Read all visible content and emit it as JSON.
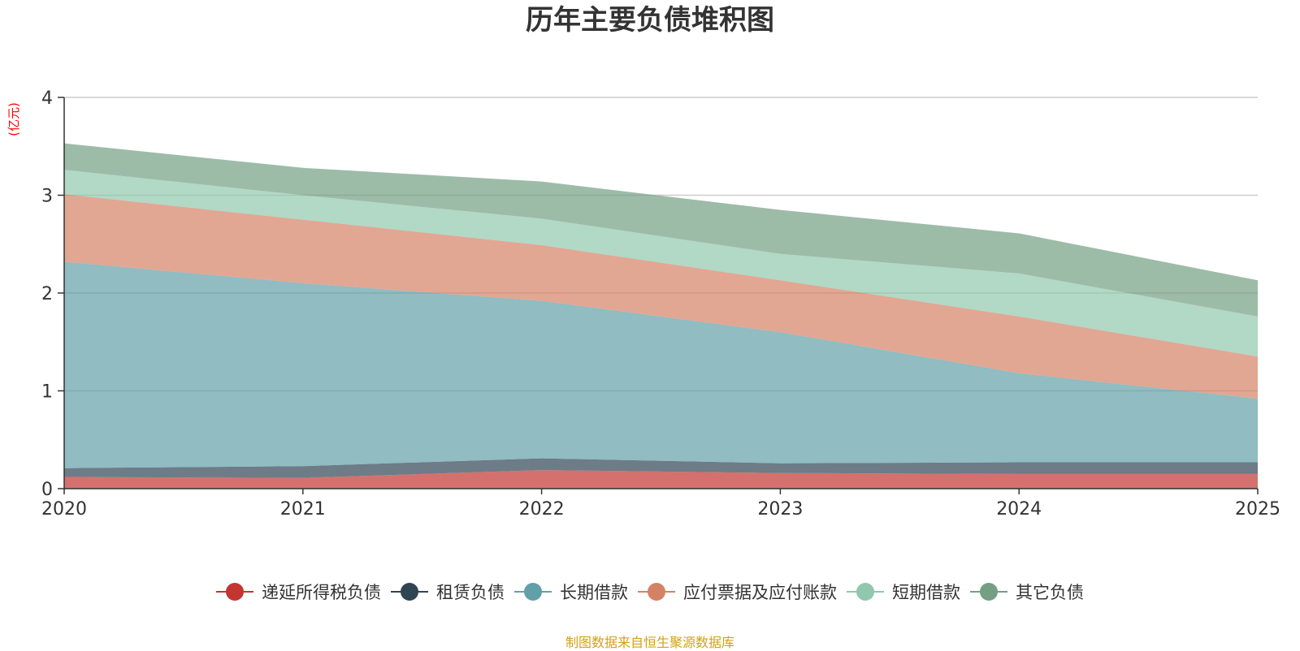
{
  "chart_data": {
    "type": "area",
    "stacked": true,
    "title": "历年主要负债堆积图",
    "ylabel": "(亿元)",
    "xlabel": "",
    "x": [
      "2020",
      "2021",
      "2022",
      "2023",
      "2024",
      "2025"
    ],
    "ylim": [
      0,
      4
    ],
    "yticks": [
      0,
      1,
      2,
      3,
      4
    ],
    "grid": true,
    "legend_position": "bottom",
    "series": [
      {
        "name": "递延所得税负债",
        "color": "#c23531",
        "values": [
          0.12,
          0.11,
          0.19,
          0.16,
          0.15,
          0.15
        ]
      },
      {
        "name": "租赁负债",
        "color": "#2f4554",
        "values": [
          0.09,
          0.12,
          0.12,
          0.1,
          0.12,
          0.12
        ]
      },
      {
        "name": "长期借款",
        "color": "#61a0a8",
        "values": [
          2.11,
          1.87,
          1.61,
          1.34,
          0.91,
          0.65
        ]
      },
      {
        "name": "应付票据及应付账款",
        "color": "#d48265",
        "values": [
          0.69,
          0.65,
          0.57,
          0.53,
          0.58,
          0.43
        ]
      },
      {
        "name": "短期借款",
        "color": "#91c7ae",
        "values": [
          0.25,
          0.25,
          0.27,
          0.27,
          0.44,
          0.41
        ]
      },
      {
        "name": "其它负债",
        "color": "#749f83",
        "values": [
          0.27,
          0.28,
          0.38,
          0.45,
          0.41,
          0.37
        ]
      }
    ]
  },
  "footer": {
    "source": "制图数据来自恒生聚源数据库"
  },
  "colors": {
    "axis": "#333333",
    "grid": "#cccccc",
    "ylabel": "#ff0000",
    "source": "#d4a017"
  }
}
